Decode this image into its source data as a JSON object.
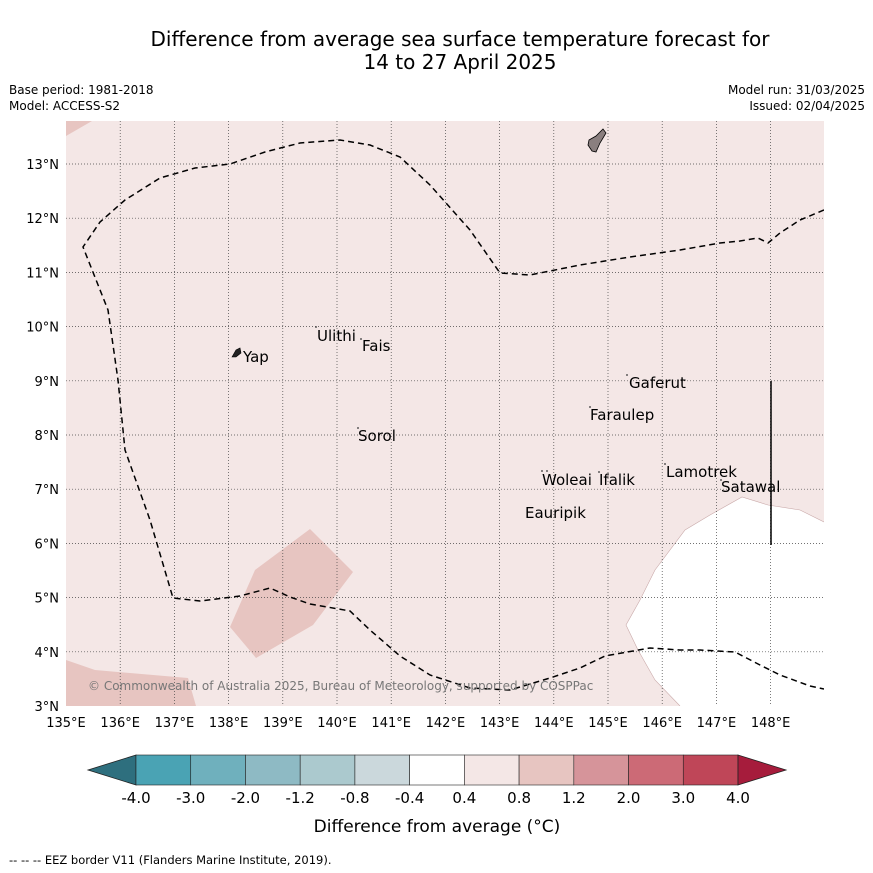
{
  "title_line1": "Difference from average sea surface temperature forecast for",
  "title_line2": "14 to 27 April 2025",
  "meta": {
    "base_period": "Base period: 1981-2018",
    "model": "Model: ACCESS-S2",
    "model_run": "Model run: 31/03/2025",
    "issued": "Issued: 02/04/2025"
  },
  "map": {
    "lon_labels": [
      "135°E",
      "136°E",
      "137°E",
      "138°E",
      "139°E",
      "140°E",
      "141°E",
      "142°E",
      "143°E",
      "144°E",
      "145°E",
      "146°E",
      "147°E",
      "148°E"
    ],
    "lat_labels": [
      "3°N",
      "4°N",
      "5°N",
      "6°N",
      "7°N",
      "8°N",
      "9°N",
      "10°N",
      "11°N",
      "12°N",
      "13°N"
    ],
    "places": [
      {
        "name": "Yap"
      },
      {
        "name": "Ulithi"
      },
      {
        "name": "Fais"
      },
      {
        "name": "Gaferut"
      },
      {
        "name": "Faraulep"
      },
      {
        "name": "Sorol"
      },
      {
        "name": "Lamotrek"
      },
      {
        "name": "Woleai"
      },
      {
        "name": "Ifalik"
      },
      {
        "name": "Satawal"
      },
      {
        "name": "Eauripik"
      }
    ],
    "copyright": "© Commonwealth of Australia 2025, Bureau of Meteorology, supported by COSPPac"
  },
  "colorbar": {
    "labels": [
      "-4.0",
      "-3.0",
      "-2.0",
      "-1.2",
      "-0.8",
      "-0.4",
      "0.4",
      "0.8",
      "1.2",
      "2.0",
      "3.0",
      "4.0"
    ],
    "colors": [
      "#2e6f7e",
      "#4aa3b4",
      "#6fb0bd",
      "#8ebac4",
      "#abc9ce",
      "#cbd8dc",
      "#ffffff",
      "#f4e7e6",
      "#e7c5c1",
      "#d6949a",
      "#cc6a76",
      "#bf4658",
      "#a61c3c"
    ],
    "label": "Difference from average (°C)"
  },
  "footer": "--  --  -- EEZ border V11 (Flanders Marine Institute, 2019)."
}
